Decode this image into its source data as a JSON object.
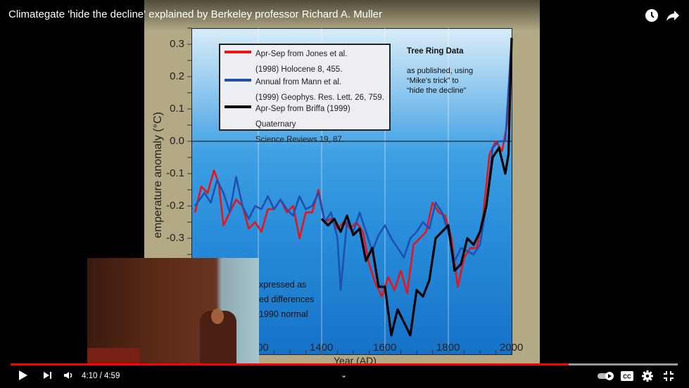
{
  "video": {
    "title": "Climategate 'hide the decline' explained by Berkeley professor Richard A. Muller",
    "top_icons": [
      "watch-later-icon",
      "share-icon"
    ],
    "current_time": "4:10",
    "duration": "4:59",
    "time_display": "4:10 / 4:59",
    "progress_fraction": 0.836,
    "colors": {
      "progress": "#ff0000",
      "background": "#000000"
    }
  },
  "controls": {
    "left": [
      "play-icon",
      "next-icon",
      "volume-icon"
    ],
    "center": "chevron-down-icon",
    "right": [
      "autoplay-toggle",
      "captions-icon",
      "settings-icon",
      "exit-fullscreen-icon"
    ],
    "cc_label": "CC"
  },
  "slide": {
    "legend": [
      {
        "line1": "Apr-Sep from Jones et al.",
        "line2": "(1998) Holocene 8, 455.",
        "color": "#e8141c"
      },
      {
        "line1": "Annual from Mann et al.",
        "line2": "(1999) Geophys. Res. Lett. 26, 759.",
        "color": "#1f4fb0"
      },
      {
        "line1": "Apr-Sep from Briffa (1999) Quaternary",
        "line2": "Science Reviews 19, 87.",
        "color": "#000000"
      }
    ],
    "note_title": "Tree Ring Data",
    "note_lines": [
      "as published, using",
      "“Mike's trick” to",
      "“hide the decline”"
    ],
    "annotation_lines": [
      "xpressed as",
      "ed differences",
      "1990 normal"
    ]
  },
  "chart_data": {
    "type": "line",
    "xlabel": "Year (AD)",
    "ylabel": "emperature anomaly (°C)",
    "xlim": [
      990,
      2005
    ],
    "ylim": [
      -0.66,
      0.35
    ],
    "x_tick_labels": [
      "00",
      "1400",
      "1600",
      "1800",
      "2000"
    ],
    "y_tick_labels": [
      "0.3",
      "0.2",
      "0.1",
      "0.0",
      "-0.1",
      "-0.2",
      "-0.3"
    ],
    "grid": "vertical lines at 1200, 1400, 1600, 1800; zero line",
    "legend_position": "top-left",
    "series": [
      {
        "name": "Apr-Sep from Jones et al. (1998) Holocene 8, 455.",
        "color": "#e8141c",
        "x": [
          1000,
          1020,
          1040,
          1060,
          1075,
          1090,
          1110,
          1130,
          1150,
          1170,
          1190,
          1210,
          1230,
          1250,
          1270,
          1290,
          1310,
          1330,
          1350,
          1370,
          1390,
          1410,
          1430,
          1450,
          1470,
          1490,
          1510,
          1530,
          1550,
          1570,
          1590,
          1610,
          1630,
          1650,
          1670,
          1690,
          1710,
          1730,
          1750,
          1770,
          1790,
          1810,
          1830,
          1850,
          1870,
          1890,
          1910,
          1930,
          1950,
          1970,
          1985,
          2000
        ],
        "y": [
          -0.22,
          -0.14,
          -0.16,
          -0.09,
          -0.13,
          -0.26,
          -0.22,
          -0.18,
          -0.2,
          -0.27,
          -0.25,
          -0.28,
          -0.21,
          -0.21,
          -0.18,
          -0.22,
          -0.2,
          -0.3,
          -0.22,
          -0.22,
          -0.15,
          -0.25,
          -0.24,
          -0.27,
          -0.25,
          -0.27,
          -0.25,
          -0.28,
          -0.38,
          -0.44,
          -0.48,
          -0.42,
          -0.46,
          -0.4,
          -0.47,
          -0.32,
          -0.3,
          -0.28,
          -0.19,
          -0.22,
          -0.23,
          -0.3,
          -0.45,
          -0.36,
          -0.33,
          -0.33,
          -0.23,
          -0.04,
          0.0,
          -0.03,
          0.05,
          0.3
        ]
      },
      {
        "name": "Annual from Mann et al. (1999) Geophys. Res. Lett. 26, 759.",
        "color": "#1f4fb0",
        "x": [
          1000,
          1030,
          1050,
          1070,
          1090,
          1110,
          1130,
          1150,
          1170,
          1190,
          1210,
          1230,
          1250,
          1270,
          1290,
          1310,
          1330,
          1350,
          1370,
          1390,
          1410,
          1430,
          1450,
          1460,
          1480,
          1500,
          1520,
          1540,
          1560,
          1580,
          1600,
          1620,
          1640,
          1660,
          1680,
          1700,
          1720,
          1740,
          1760,
          1780,
          1800,
          1820,
          1840,
          1860,
          1880,
          1900,
          1920,
          1940,
          1960,
          1980,
          2000
        ],
        "y": [
          -0.2,
          -0.16,
          -0.19,
          -0.12,
          -0.16,
          -0.22,
          -0.11,
          -0.2,
          -0.24,
          -0.2,
          -0.21,
          -0.17,
          -0.21,
          -0.18,
          -0.21,
          -0.23,
          -0.17,
          -0.21,
          -0.2,
          -0.16,
          -0.25,
          -0.22,
          -0.3,
          -0.46,
          -0.25,
          -0.28,
          -0.22,
          -0.28,
          -0.34,
          -0.29,
          -0.26,
          -0.3,
          -0.33,
          -0.36,
          -0.3,
          -0.28,
          -0.25,
          -0.27,
          -0.19,
          -0.22,
          -0.28,
          -0.37,
          -0.33,
          -0.34,
          -0.35,
          -0.32,
          -0.2,
          -0.02,
          0.0,
          0.0,
          0.32
        ]
      },
      {
        "name": "Apr-Sep from Briffa (1999) Quaternary Science Reviews 19, 87.",
        "color": "#000000",
        "x": [
          1400,
          1420,
          1440,
          1460,
          1480,
          1500,
          1520,
          1540,
          1560,
          1580,
          1600,
          1620,
          1640,
          1660,
          1680,
          1700,
          1720,
          1740,
          1760,
          1780,
          1800,
          1820,
          1840,
          1860,
          1880,
          1900,
          1920,
          1940,
          1960,
          1980,
          1990,
          2000
        ],
        "y": [
          -0.24,
          -0.26,
          -0.24,
          -0.28,
          -0.23,
          -0.29,
          -0.27,
          -0.37,
          -0.33,
          -0.45,
          -0.45,
          -0.6,
          -0.52,
          -0.56,
          -0.6,
          -0.46,
          -0.48,
          -0.43,
          -0.3,
          -0.28,
          -0.26,
          -0.4,
          -0.38,
          -0.3,
          -0.32,
          -0.28,
          -0.2,
          -0.05,
          -0.02,
          -0.1,
          -0.04,
          0.32
        ]
      }
    ]
  }
}
